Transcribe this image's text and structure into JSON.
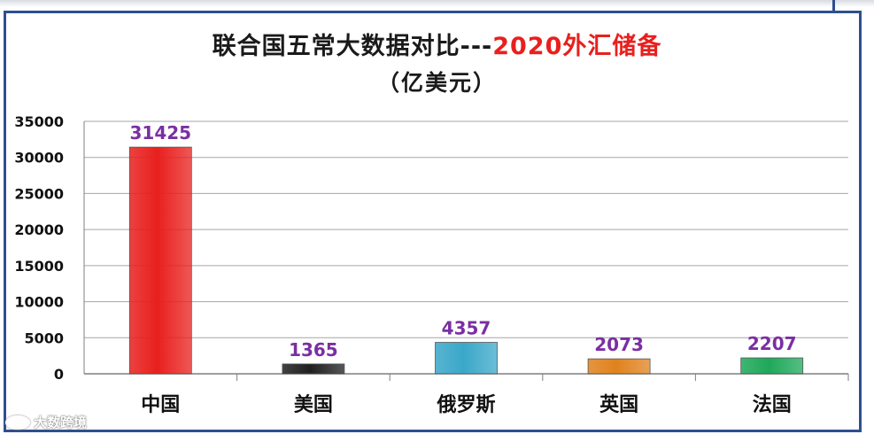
{
  "header": {
    "title_main": "联合国五常大数据对比---",
    "title_highlight": "2020外汇储备",
    "subtitle": "（亿美元）"
  },
  "watermark": {
    "text": "大数跨境"
  },
  "colors": {
    "frame": "#2f4f8f",
    "highlight": "#e8201e",
    "data_label": "#7a2fa3"
  },
  "chart_data": {
    "type": "bar",
    "title": "联合国五常大数据对比---2020外汇储备",
    "subtitle": "（亿美元）",
    "categories": [
      "中国",
      "美国",
      "俄罗斯",
      "英国",
      "法国"
    ],
    "values": [
      31425,
      1365,
      4357,
      2073,
      2207
    ],
    "bar_colors": [
      "#e8201e",
      "#1f1f1f",
      "#3aa7c9",
      "#e0821e",
      "#1fa85a"
    ],
    "ylim": [
      0,
      35000
    ],
    "yticks": [
      0,
      5000,
      10000,
      15000,
      20000,
      25000,
      30000,
      35000
    ],
    "grid": true,
    "legend": "none",
    "xlabel": "",
    "ylabel": ""
  }
}
